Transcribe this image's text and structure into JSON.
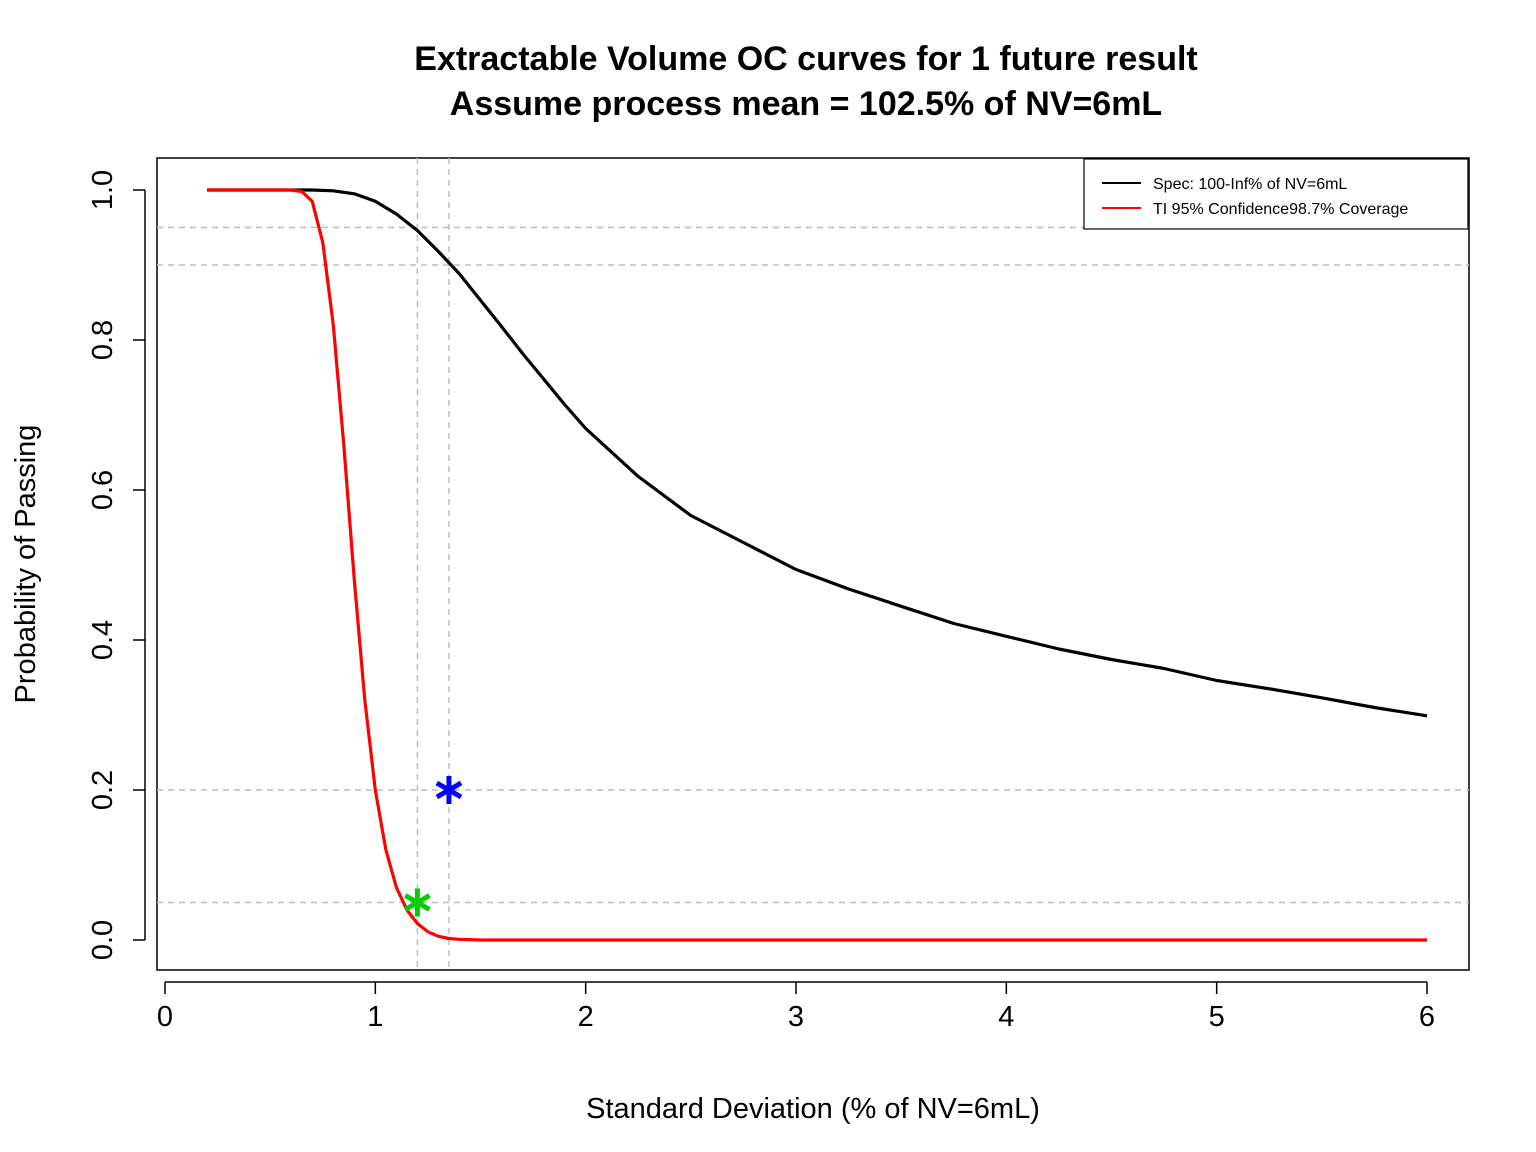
{
  "chart_data": {
    "type": "line",
    "title": "Extractable Volume OC curves for 1 future result",
    "subtitle": "Assume process mean = 102.5% of NV=6mL",
    "xlabel": "Standard Deviation (% of NV=6mL)",
    "ylabel": "Probability of Passing",
    "xlim": [
      0,
      6
    ],
    "ylim": [
      0,
      1
    ],
    "x_ticks": [
      0,
      1,
      2,
      3,
      4,
      5,
      6
    ],
    "y_ticks": [
      0.0,
      0.2,
      0.4,
      0.6,
      0.8,
      1.0
    ],
    "y_tick_labels": [
      "0.0",
      "0.2",
      "0.4",
      "0.6",
      "0.8",
      "1.0"
    ],
    "grid": false,
    "legend_position": "top-right",
    "series": [
      {
        "name": "Spec: 100-Inf% of NV=6mL",
        "color": "#000000",
        "x": [
          0.2,
          0.6,
          0.7,
          0.8,
          0.9,
          1.0,
          1.1,
          1.2,
          1.3,
          1.4,
          1.5,
          1.6,
          1.7,
          1.8,
          1.9,
          2.0,
          2.25,
          2.5,
          2.75,
          3.0,
          3.25,
          3.5,
          3.75,
          4.0,
          4.25,
          4.5,
          4.75,
          5.0,
          5.25,
          5.5,
          5.75,
          6.0
        ],
        "y": [
          1.0,
          1.0,
          1.0,
          0.999,
          0.995,
          0.985,
          0.968,
          0.946,
          0.918,
          0.888,
          0.853,
          0.818,
          0.782,
          0.748,
          0.714,
          0.682,
          0.618,
          0.566,
          0.53,
          0.494,
          0.468,
          0.445,
          0.422,
          0.405,
          0.388,
          0.374,
          0.362,
          0.346,
          0.335,
          0.323,
          0.31,
          0.299
        ]
      },
      {
        "name": "TI 95% Confidence98.7% Coverage",
        "color": "#ff0000",
        "x": [
          0.2,
          0.6,
          0.65,
          0.7,
          0.75,
          0.8,
          0.85,
          0.9,
          0.95,
          1.0,
          1.05,
          1.1,
          1.15,
          1.2,
          1.25,
          1.3,
          1.35,
          1.4,
          1.5,
          6.0
        ],
        "y": [
          1.0,
          1.0,
          0.998,
          0.985,
          0.93,
          0.82,
          0.66,
          0.48,
          0.32,
          0.2,
          0.12,
          0.07,
          0.04,
          0.022,
          0.011,
          0.005,
          0.002,
          0.001,
          0.0,
          0.0
        ]
      }
    ],
    "reference_lines": {
      "horizontal": [
        0.95,
        0.9,
        0.2,
        0.05
      ],
      "vertical": [
        1.2,
        1.35
      ],
      "color": "#bebebe",
      "style": "dashed"
    },
    "markers": [
      {
        "x": 1.35,
        "y": 0.2,
        "symbol": "*",
        "color": "#0000ff"
      },
      {
        "x": 1.2,
        "y": 0.05,
        "symbol": "*",
        "color": "#00cd00"
      }
    ]
  }
}
